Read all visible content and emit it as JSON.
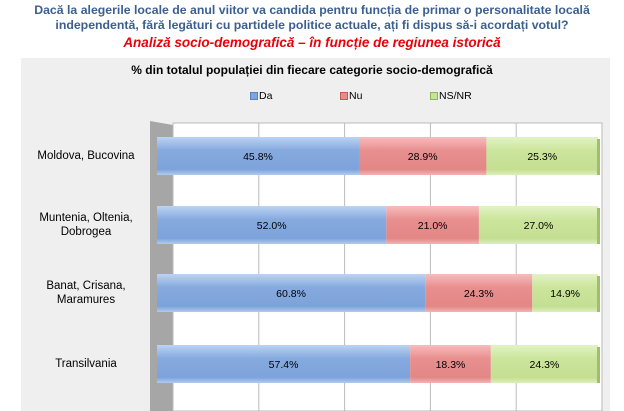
{
  "question": "Dacă la alegerile locale de anul viitor va candida pentru funcția de primar o personalitate locală independentă, fără legături cu partidele politice actuale, ați fi dispus să-i acordați votul?",
  "question_line1": "Dacă la alegerile locale de anul viitor va candida pentru funcția de primar o personalitate locală",
  "question_line2": "independentă, fără legături cu partidele politice actuale, ați fi dispus să-i acordați votul?",
  "subtitle": "Analiză socio-demografică – în funcție de regiunea istorică",
  "chart_data": {
    "type": "bar",
    "orientation": "horizontal-stacked",
    "title": "% din totalul populației din fiecare categorie socio-demografică",
    "categories": [
      "Moldova, Bucovina",
      "Muntenia, Oltenia, Dobrogea",
      "Banat, Crisana, Maramures",
      "Transilvania"
    ],
    "series": [
      {
        "name": "Da",
        "values": [
          45.8,
          52.0,
          60.8,
          57.4
        ],
        "color": "#7fa6dc"
      },
      {
        "name": "Nu",
        "values": [
          28.9,
          21.0,
          24.3,
          18.3
        ],
        "color": "#e68a8a"
      },
      {
        "name": "NS/NR",
        "values": [
          25.3,
          27.0,
          14.9,
          24.3
        ],
        "color": "#c7e397"
      }
    ],
    "xlim": [
      0,
      100
    ],
    "legend": "top"
  }
}
